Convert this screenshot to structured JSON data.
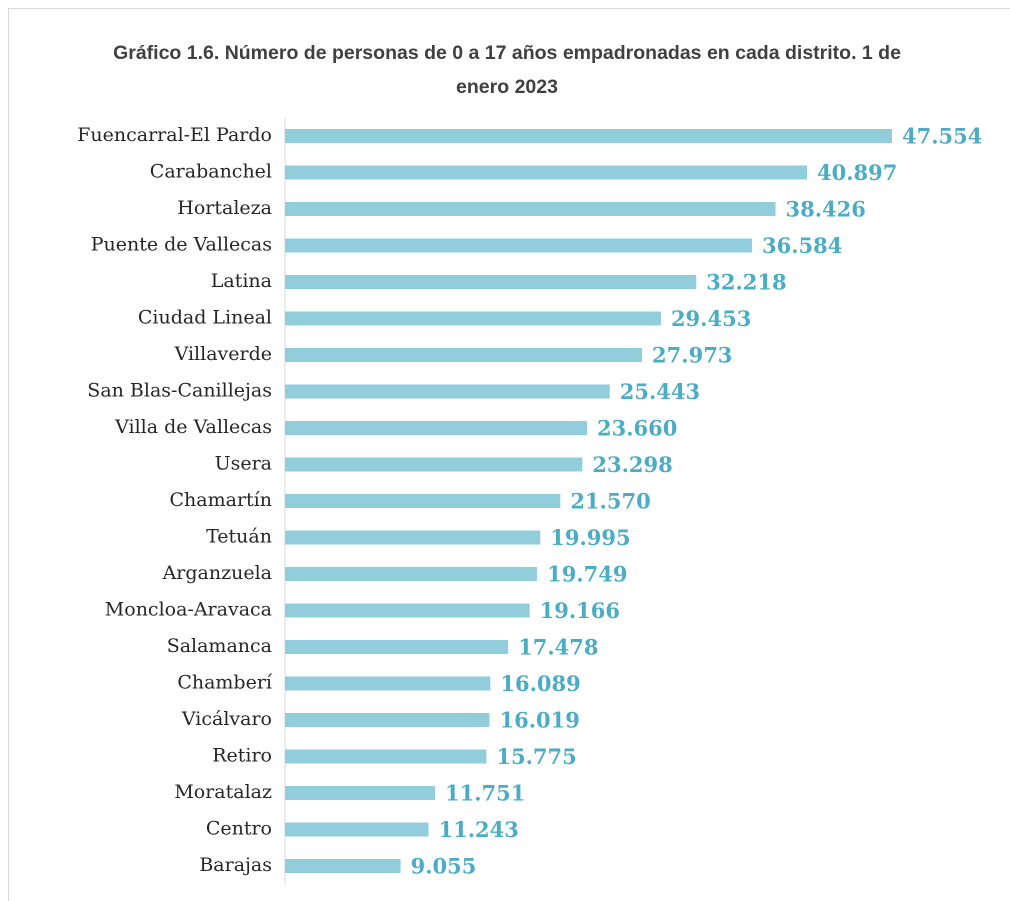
{
  "chart_data": {
    "type": "bar",
    "orientation": "horizontal",
    "title": "Gráfico 1.6. Número de personas de 0 a 17 años empadronadas en cada distrito. 1 de enero 2023",
    "categories": [
      "Fuencarral-El Pardo",
      "Carabanchel",
      "Hortaleza",
      "Puente de Vallecas",
      "Latina",
      "Ciudad Lineal",
      "Villaverde",
      "San Blas-Canillejas",
      "Villa de Vallecas",
      "Usera",
      "Chamartín",
      "Tetuán",
      "Arganzuela",
      "Moncloa-Aravaca",
      "Salamanca",
      "Chamberí",
      "Vicálvaro",
      "Retiro",
      "Moratalaz",
      "Centro",
      "Barajas"
    ],
    "values": [
      47554,
      40897,
      38426,
      36584,
      32218,
      29453,
      27973,
      25443,
      23660,
      23298,
      21570,
      19995,
      19749,
      19166,
      17478,
      16089,
      16019,
      15775,
      11751,
      11243,
      9055
    ],
    "value_labels": [
      "47.554",
      "40.897",
      "38.426",
      "36.584",
      "32.218",
      "29.453",
      "27.973",
      "25.443",
      "23.660",
      "23.298",
      "21.570",
      "19.995",
      "19.749",
      "19.166",
      "17.478",
      "16.089",
      "16.019",
      "15.775",
      "11.751",
      "11.243",
      "9.055"
    ],
    "color": "#92cddc",
    "label_color": "#4bacc6"
  }
}
